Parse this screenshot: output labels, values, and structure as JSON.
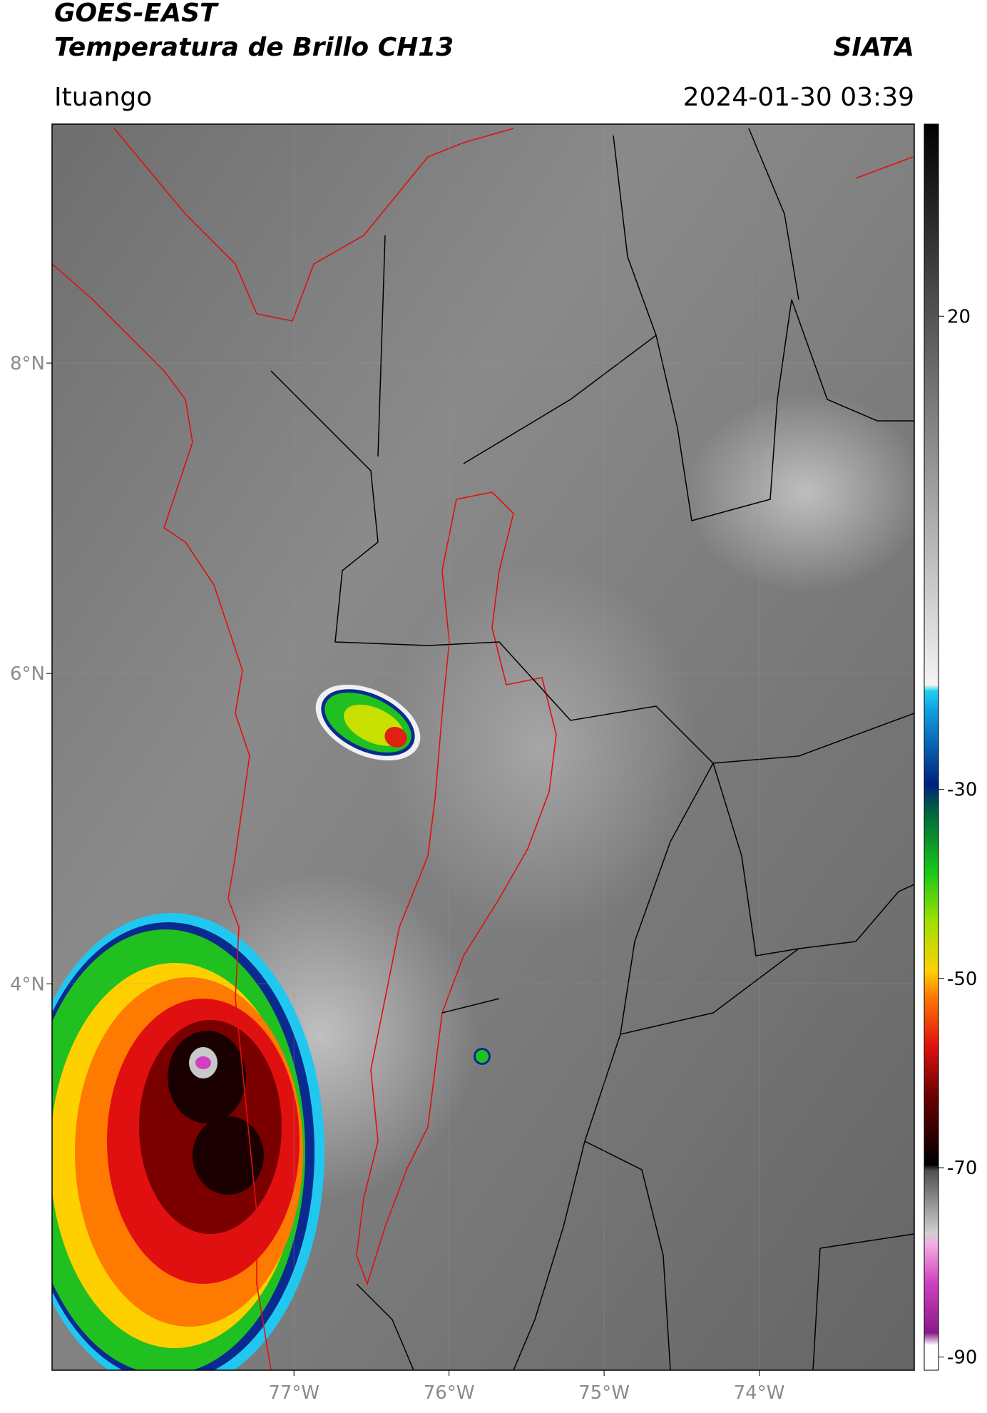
{
  "header": {
    "title_line1": "GOES-EAST",
    "title_line2": "Temperatura de Brillo CH13",
    "org": "SIATA",
    "location": "Ituango",
    "datetime": "2024-01-30 03:39"
  },
  "map": {
    "xlim": [
      -78.56,
      -73.0
    ],
    "ylim": [
      1.51,
      9.54
    ],
    "xticks": [
      {
        "value": -77,
        "label": "77°W"
      },
      {
        "value": -76,
        "label": "76°W"
      },
      {
        "value": -75,
        "label": "75°W"
      },
      {
        "value": -74,
        "label": "74°W"
      }
    ],
    "yticks": [
      {
        "value": 8,
        "label": "8°N"
      },
      {
        "value": 6,
        "label": "6°N"
      },
      {
        "value": 4,
        "label": "4°N"
      }
    ],
    "grid": true
  },
  "colorbar": {
    "lim": [
      -91.4,
      40.3
    ],
    "ticks": [
      20,
      -30,
      -50,
      -70,
      -90
    ]
  }
}
